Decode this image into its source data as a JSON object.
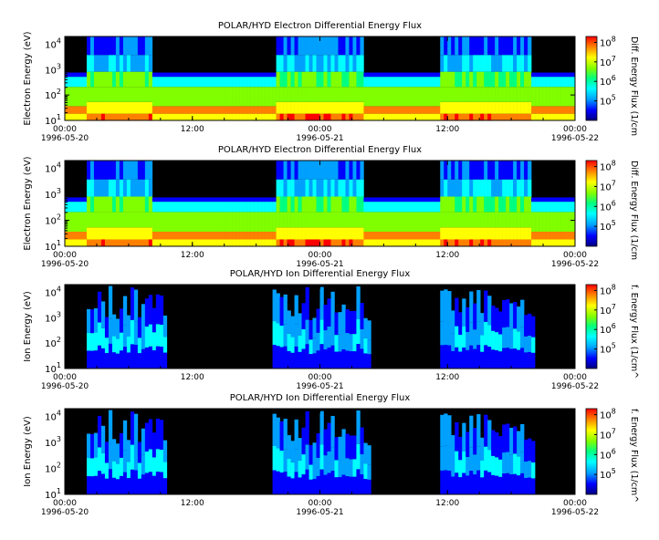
{
  "chart_data": [
    {
      "type": "heatmap",
      "title": "POLAR/HYD  Electron Differential Energy Flux",
      "ylabel": "Electron Energy (eV)",
      "colorbar_label": "Diff. Energy Flux (1/cm",
      "x_ticks": [
        {
          "time": "00:00",
          "date": "1996-05-20"
        },
        {
          "time": "12:00",
          "date": ""
        },
        {
          "time": "00:00",
          "date": "1996-05-21"
        },
        {
          "time": "12:00",
          "date": ""
        },
        {
          "time": "00:00",
          "date": "1996-05-22"
        }
      ],
      "xlim": [
        "1996-05-20 00:00",
        "1996-05-22 00:00"
      ],
      "y_scale": "log",
      "ylim": [
        10,
        20000
      ],
      "y_ticks": [
        {
          "base": "10",
          "exp": "1"
        },
        {
          "base": "10",
          "exp": "2"
        },
        {
          "base": "10",
          "exp": "3"
        },
        {
          "base": "10",
          "exp": "4"
        }
      ],
      "colorbar_scale": "log",
      "colorbar_range": [
        10000,
        200000000
      ],
      "colorbar_ticks": [
        {
          "base": "10",
          "exp": "5"
        },
        {
          "base": "10",
          "exp": "6"
        },
        {
          "base": "10",
          "exp": "7"
        },
        {
          "base": "10",
          "exp": "8"
        }
      ]
    },
    {
      "type": "heatmap",
      "title": "POLAR/HYD  Electron Differential Energy Flux",
      "ylabel": "Electron Energy (eV)",
      "colorbar_label": "Diff. Energy Flux (1/cm",
      "x_ticks": [
        {
          "time": "00:00",
          "date": "1996-05-20"
        },
        {
          "time": "12:00",
          "date": ""
        },
        {
          "time": "00:00",
          "date": "1996-05-21"
        },
        {
          "time": "12:00",
          "date": ""
        },
        {
          "time": "00:00",
          "date": "1996-05-22"
        }
      ],
      "xlim": [
        "1996-05-20 00:00",
        "1996-05-22 00:00"
      ],
      "y_scale": "log",
      "ylim": [
        10,
        20000
      ],
      "y_ticks": [
        {
          "base": "10",
          "exp": "1"
        },
        {
          "base": "10",
          "exp": "2"
        },
        {
          "base": "10",
          "exp": "3"
        },
        {
          "base": "10",
          "exp": "4"
        }
      ],
      "colorbar_scale": "log",
      "colorbar_range": [
        10000,
        200000000
      ],
      "colorbar_ticks": [
        {
          "base": "10",
          "exp": "5"
        },
        {
          "base": "10",
          "exp": "6"
        },
        {
          "base": "10",
          "exp": "7"
        },
        {
          "base": "10",
          "exp": "8"
        }
      ]
    },
    {
      "type": "heatmap",
      "title": "POLAR/HYD  Ion Differential Energy Flux",
      "ylabel": "Ion Energy (eV)",
      "colorbar_label": "f. Energy Flux (1/cm^",
      "x_ticks": [
        {
          "time": "00:00",
          "date": "1996-05-20"
        },
        {
          "time": "12:00",
          "date": ""
        },
        {
          "time": "00:00",
          "date": "1996-05-21"
        },
        {
          "time": "12:00",
          "date": ""
        },
        {
          "time": "00:00",
          "date": "1996-05-22"
        }
      ],
      "xlim": [
        "1996-05-20 00:00",
        "1996-05-22 00:00"
      ],
      "y_scale": "log",
      "ylim": [
        10,
        20000
      ],
      "y_ticks": [
        {
          "base": "10",
          "exp": "1"
        },
        {
          "base": "10",
          "exp": "2"
        },
        {
          "base": "10",
          "exp": "3"
        },
        {
          "base": "10",
          "exp": "4"
        }
      ],
      "colorbar_scale": "log",
      "colorbar_range": [
        10000,
        200000000
      ],
      "colorbar_ticks": [
        {
          "base": "10",
          "exp": "5"
        },
        {
          "base": "10",
          "exp": "6"
        },
        {
          "base": "10",
          "exp": "7"
        },
        {
          "base": "10",
          "exp": "8"
        }
      ]
    },
    {
      "type": "heatmap",
      "title": "POLAR/HYD  Ion Differential Energy Flux",
      "ylabel": "Ion Energy (eV)",
      "colorbar_label": "f. Energy Flux (1/cm^",
      "x_ticks": [
        {
          "time": "00:00",
          "date": "1996-05-20"
        },
        {
          "time": "12:00",
          "date": ""
        },
        {
          "time": "00:00",
          "date": "1996-05-21"
        },
        {
          "time": "12:00",
          "date": ""
        },
        {
          "time": "00:00",
          "date": "1996-05-22"
        }
      ],
      "xlim": [
        "1996-05-20 00:00",
        "1996-05-22 00:00"
      ],
      "y_scale": "log",
      "ylim": [
        10,
        20000
      ],
      "y_ticks": [
        {
          "base": "10",
          "exp": "1"
        },
        {
          "base": "10",
          "exp": "2"
        },
        {
          "base": "10",
          "exp": "3"
        },
        {
          "base": "10",
          "exp": "4"
        }
      ],
      "colorbar_scale": "log",
      "colorbar_range": [
        10000,
        200000000
      ],
      "colorbar_ticks": [
        {
          "base": "10",
          "exp": "5"
        },
        {
          "base": "10",
          "exp": "6"
        },
        {
          "base": "10",
          "exp": "7"
        },
        {
          "base": "10",
          "exp": "8"
        }
      ]
    }
  ],
  "colors": {
    "colormap": [
      "#000080",
      "#0000ff",
      "#00a0ff",
      "#00ffff",
      "#00ff80",
      "#80ff00",
      "#ffff00",
      "#ff8000",
      "#ff0000"
    ],
    "no_data": "#000000"
  }
}
